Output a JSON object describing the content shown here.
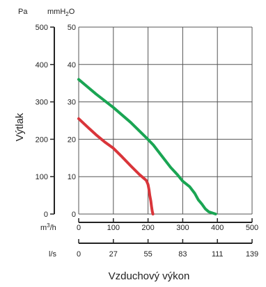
{
  "chart_data": {
    "type": "line",
    "ylabel": "Výtlak",
    "xlabel": "Vzduchový výkon",
    "left_axis": {
      "unit": "Pa",
      "ticks": [
        0,
        100,
        200,
        300,
        400,
        500
      ],
      "ylim": [
        0,
        500
      ]
    },
    "right_axis": {
      "unit_main": "mmH",
      "unit_sub": "2",
      "unit_tail": "O",
      "ticks": [
        0,
        10,
        20,
        30,
        40,
        50
      ],
      "ylim": [
        0,
        50
      ]
    },
    "x_axis_primary": {
      "unit_main": "m",
      "unit_sup": "3",
      "unit_tail": "/h",
      "ticks": [
        0,
        100,
        200,
        300,
        400,
        500
      ],
      "xlim": [
        0,
        500
      ]
    },
    "x_axis_secondary": {
      "unit": "l/s",
      "ticks": [
        "0",
        "27",
        "55",
        "83",
        "111",
        "139"
      ]
    },
    "grid": true,
    "series": [
      {
        "color": "#1aa553",
        "x": [
          0,
          50,
          100,
          150,
          195,
          215,
          240,
          265,
          285,
          300,
          320,
          335,
          345,
          355,
          365,
          375,
          385,
          395
        ],
        "y": [
          36,
          32.1,
          28.5,
          24.5,
          20.4,
          18.5,
          15.5,
          12.5,
          10.5,
          8.8,
          7.3,
          5.5,
          3.8,
          2.7,
          1.4,
          0.6,
          0.3,
          0
        ]
      },
      {
        "color": "#d9353a",
        "x": [
          0,
          25,
          50,
          75,
          100,
          125,
          150,
          175,
          185,
          195,
          200,
          203,
          205,
          208,
          210,
          212,
          214
        ],
        "y": [
          25.5,
          23.3,
          21.2,
          19.3,
          17.6,
          15.3,
          12.9,
          10.6,
          9.8,
          9.0,
          7.9,
          6.4,
          5.0,
          3.5,
          2.0,
          0.8,
          0
        ]
      }
    ]
  }
}
